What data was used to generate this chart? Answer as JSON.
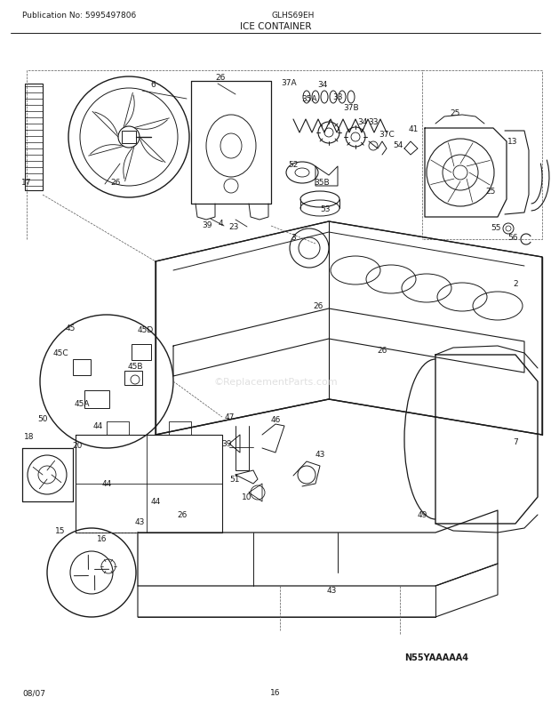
{
  "title": "ICE CONTAINER",
  "pub_no": "Publication No: 5995497806",
  "model": "GLHS69EH",
  "diagram_id": "N55YAAAAA4",
  "date": "08/07",
  "page": "16",
  "bg_color": "#ffffff",
  "line_color": "#1a1a1a",
  "text_color": "#1a1a1a",
  "figsize": [
    6.2,
    8.03
  ],
  "dpi": 100,
  "watermark": "©ReplacementParts.com"
}
